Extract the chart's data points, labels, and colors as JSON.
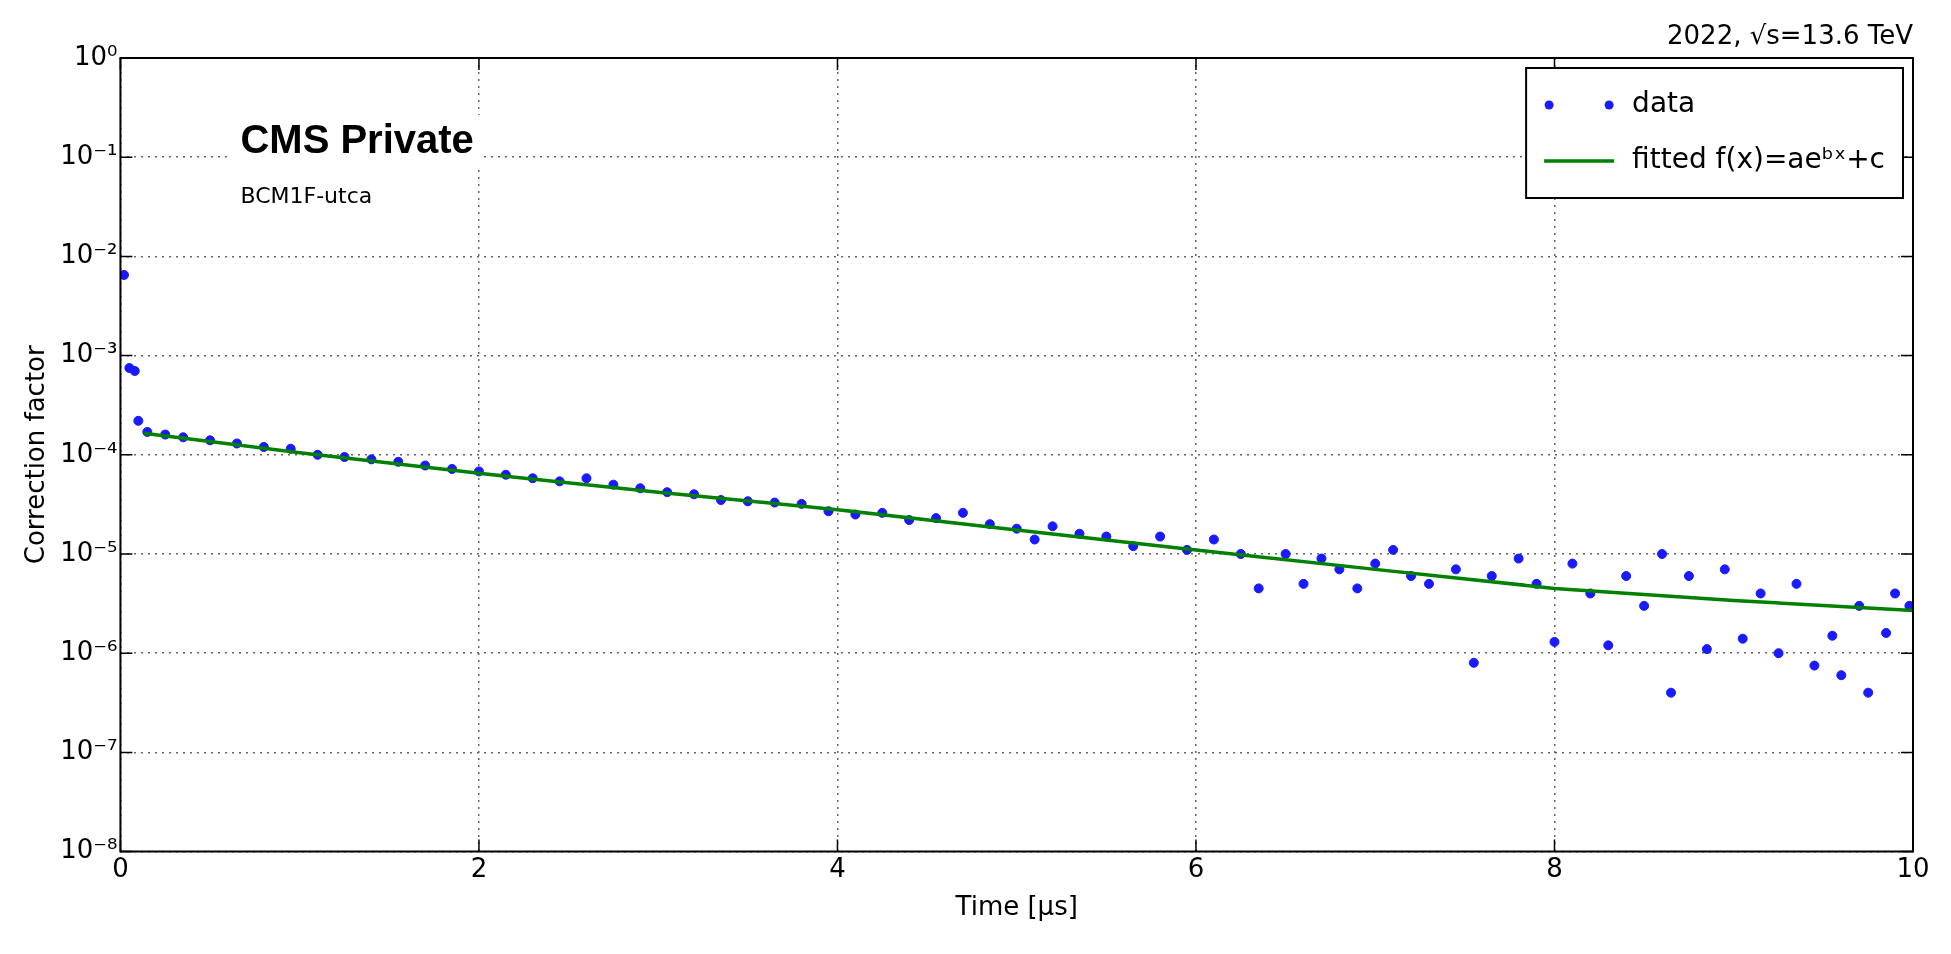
{
  "chart_data": {
    "type": "scatter",
    "xlabel": "Time [μs]",
    "ylabel": "Correction factor",
    "log": "y",
    "grid": true,
    "legend": "top right",
    "marker": "circle",
    "xlim": [
      0,
      10
    ],
    "xticks": [
      0,
      2,
      4,
      6,
      8,
      10
    ],
    "ylim": [
      1e-08,
      1
    ],
    "yticks": [
      {
        "value": 1e-08,
        "label": "10⁻⁸"
      },
      {
        "value": 1e-07,
        "label": "10⁻⁷"
      },
      {
        "value": 1e-06,
        "label": "10⁻⁶"
      },
      {
        "value": 1e-05,
        "label": "10⁻⁵"
      },
      {
        "value": 0.0001,
        "label": "10⁻⁴"
      },
      {
        "value": 0.001,
        "label": "10⁻³"
      },
      {
        "value": 0.01,
        "label": "10⁻²"
      },
      {
        "value": 0.1,
        "label": "10⁻¹"
      },
      {
        "value": 1,
        "label": "10⁰"
      }
    ],
    "annotations": [
      "2022, √s=13.6 TeV",
      "CMS Private",
      "BCM1F-utca"
    ],
    "series": [
      {
        "name": "data",
        "color": "#1a1aff",
        "x": [
          0.02,
          0.05,
          0.08,
          0.1,
          0.15,
          0.25,
          0.35,
          0.5,
          0.65,
          0.8,
          0.95,
          1.1,
          1.25,
          1.4,
          1.55,
          1.7,
          1.85,
          2.0,
          2.15,
          2.3,
          2.45,
          2.6,
          2.75,
          2.9,
          3.05,
          3.2,
          3.35,
          3.5,
          3.65,
          3.8,
          3.95,
          4.1,
          4.25,
          4.4,
          4.55,
          4.7,
          4.85,
          5.0,
          5.1,
          5.2,
          5.35,
          5.5,
          5.65,
          5.8,
          5.95,
          6.1,
          6.25,
          6.35,
          6.5,
          6.6,
          6.7,
          6.8,
          6.9,
          7.0,
          7.1,
          7.2,
          7.3,
          7.45,
          7.55,
          7.65,
          7.8,
          7.9,
          8.0,
          8.1,
          8.2,
          8.3,
          8.4,
          8.5,
          8.6,
          8.65,
          8.75,
          8.85,
          8.95,
          9.05,
          9.15,
          9.25,
          9.35,
          9.45,
          9.55,
          9.6,
          9.7,
          9.75,
          9.85,
          9.9,
          9.98
        ],
        "values": [
          0.0065,
          0.00075,
          0.0007,
          0.00022,
          0.00017,
          0.00016,
          0.00015,
          0.00014,
          0.00013,
          0.00012,
          0.000115,
          0.0001,
          9.5e-05,
          9e-05,
          8.5e-05,
          7.8e-05,
          7.2e-05,
          6.8e-05,
          6.3e-05,
          5.8e-05,
          5.4e-05,
          5.8e-05,
          5e-05,
          4.6e-05,
          4.2e-05,
          4e-05,
          3.5e-05,
          3.4e-05,
          3.3e-05,
          3.2e-05,
          2.7e-05,
          2.5e-05,
          2.6e-05,
          2.2e-05,
          2.3e-05,
          2.6e-05,
          2e-05,
          1.8e-05,
          1.4e-05,
          1.9e-05,
          1.6e-05,
          1.5e-05,
          1.2e-05,
          1.5e-05,
          1.1e-05,
          1.4e-05,
          1e-05,
          4.5e-06,
          1e-05,
          5e-06,
          9e-06,
          7e-06,
          4.5e-06,
          8e-06,
          1.1e-05,
          6e-06,
          5e-06,
          7e-06,
          8e-07,
          6e-06,
          9e-06,
          5e-06,
          1.3e-06,
          8e-06,
          4e-06,
          1.2e-06,
          6e-06,
          3e-06,
          1e-05,
          4e-07,
          6e-06,
          1.1e-06,
          7e-06,
          1.4e-06,
          4e-06,
          1e-06,
          5e-06,
          7.5e-07,
          1.5e-06,
          6e-07,
          3e-06,
          4e-07,
          1.6e-06,
          4e-06,
          3e-06
        ]
      },
      {
        "name": "fitted f(x)=aeᵇˣ+c",
        "type": "line",
        "marker": "none",
        "color": "#008000",
        "line_style": "solid",
        "x": [
          0.13,
          1,
          2,
          3,
          4,
          5,
          6,
          7,
          8,
          9,
          10
        ],
        "values": [
          0.000165,
          0.000105,
          6.5e-05,
          4.2e-05,
          2.8e-05,
          1.75e-05,
          1.1e-05,
          7e-06,
          4.5e-06,
          3.4e-06,
          2.7e-06
        ]
      }
    ]
  }
}
